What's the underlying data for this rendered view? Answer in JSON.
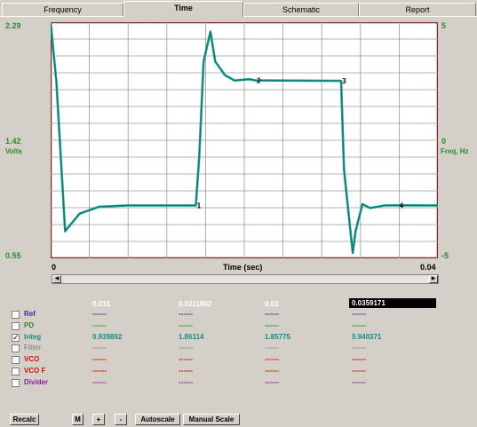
{
  "tabs": [
    {
      "label": "Frequency",
      "active": false
    },
    {
      "label": "Time",
      "active": true
    },
    {
      "label": "Schematic",
      "active": false
    },
    {
      "label": "Report",
      "active": false
    }
  ],
  "plot": {
    "y_left_max": "2.29",
    "y_left_mid": "1.42",
    "y_left_min": "0.55",
    "y_left_unit": "Volts",
    "y_right_max": "5",
    "y_right_mid": "0",
    "y_right_min": "-5",
    "y_right_unit": "Freq, Hz",
    "x_min": "0",
    "x_max": "0.04",
    "x_label": "Time (sec)",
    "markers": [
      "1",
      "2",
      "3",
      "4"
    ]
  },
  "chart_data": {
    "type": "line",
    "xlabel": "Time (sec)",
    "ylabel": "Volts",
    "xlim": [
      0,
      0.04
    ],
    "ylim": [
      0.55,
      2.29
    ],
    "y2label": "Freq, Hz",
    "y2lim": [
      -5,
      5
    ],
    "grid": true,
    "series": [
      {
        "color": "#1a9d92",
        "x": [
          0,
          0.0006,
          0.0015,
          0.003,
          0.005,
          0.008,
          0.015,
          0.01535,
          0.0158,
          0.0165,
          0.017,
          0.018,
          0.019,
          0.0205,
          0.0211802,
          0.03,
          0.0303,
          0.0312,
          0.0315,
          0.0322,
          0.033,
          0.0345,
          0.0359171,
          0.04
        ],
        "y": [
          2.29,
          1.85,
          0.75,
          0.88,
          0.93,
          0.94,
          0.94,
          1.3,
          2.0,
          2.22,
          2.0,
          1.9,
          1.86,
          1.87,
          1.86114,
          1.85775,
          1.2,
          0.59,
          0.75,
          0.95,
          0.92,
          0.94,
          0.940371,
          0.94
        ]
      }
    ],
    "markers": [
      {
        "label": "1",
        "x": 0.015,
        "y": 0.94
      },
      {
        "label": "2",
        "x": 0.0211802,
        "y": 1.86114
      },
      {
        "label": "3",
        "x": 0.03,
        "y": 1.85775
      },
      {
        "label": "4",
        "x": 0.0359171,
        "y": 0.940371
      }
    ]
  },
  "table": {
    "columns": [
      "0.015",
      "0.0211802",
      "0.03",
      "0.0359171"
    ],
    "rows": [
      {
        "name": "Ref",
        "checked": false,
        "color": "#3030a8",
        "values": [
          "------",
          "------",
          "------",
          "------"
        ]
      },
      {
        "name": "PD",
        "checked": false,
        "color": "#2c8a2c",
        "values": [
          "------",
          "------",
          "------",
          "------"
        ]
      },
      {
        "name": "Integ",
        "checked": true,
        "color": "#1a8a80",
        "values": [
          "0.939892",
          "1.86114",
          "1.85775",
          "0.940371"
        ]
      },
      {
        "name": "Filter",
        "checked": false,
        "color": "#909090",
        "values": [
          "------",
          "------",
          "------",
          "------"
        ]
      },
      {
        "name": "VCO",
        "checked": false,
        "color": "#d01010",
        "values": [
          "------",
          "------",
          "------",
          "------"
        ]
      },
      {
        "name": "VCO F",
        "checked": false,
        "color": "#d01010",
        "values": [
          "------",
          "------",
          "------",
          "------"
        ]
      },
      {
        "name": "Divider",
        "checked": false,
        "color": "#8a20a0",
        "values": [
          "------",
          "------",
          "------",
          "------"
        ]
      }
    ]
  },
  "buttons": {
    "recalc": "Recalc",
    "m": "M",
    "plus": "+",
    "minus": "-",
    "autoscale": "Autoscale",
    "manual_scale": "Manual Scale"
  }
}
